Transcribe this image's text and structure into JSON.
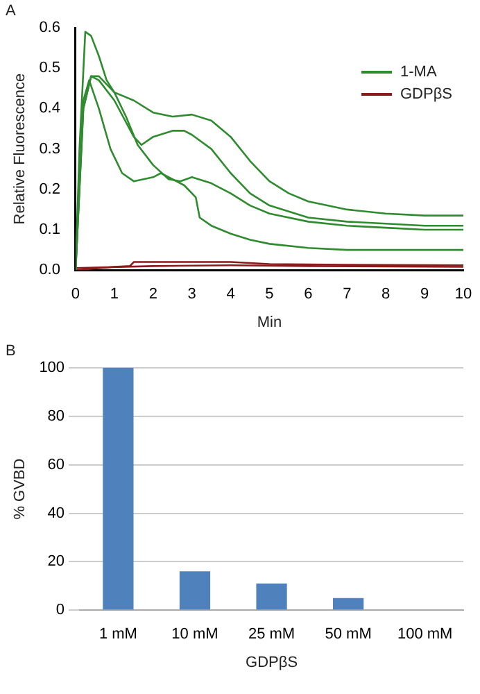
{
  "chart_data": [
    {
      "type": "line",
      "xlabel": "Min",
      "ylabel": "Relative Fluorescence",
      "annotations": [
        "A"
      ],
      "xlim": [
        0,
        10
      ],
      "xticks": [
        0,
        1,
        2,
        3,
        4,
        5,
        6,
        7,
        8,
        9,
        10
      ],
      "ylim": [
        0,
        0.6
      ],
      "yticks": [
        {
          "value": 0,
          "label": "0.0"
        },
        0.1,
        0.2,
        0.3,
        0.4,
        0.5,
        0.6
      ],
      "grid": false,
      "legend": "top right",
      "marker": "none",
      "line_style": "solid",
      "series": [
        {
          "name": "1-MA",
          "color": "#2e8b2e",
          "x": [
            0,
            0.1,
            0.25,
            0.4,
            0.6,
            0.8,
            1,
            1.5,
            2,
            2.5,
            3,
            3.5,
            4,
            4.5,
            5,
            5.5,
            6,
            7,
            8,
            9,
            10
          ],
          "values": [
            0,
            0.3,
            0.59,
            0.58,
            0.53,
            0.47,
            0.44,
            0.42,
            0.39,
            0.38,
            0.385,
            0.37,
            0.33,
            0.27,
            0.22,
            0.19,
            0.17,
            0.15,
            0.14,
            0.135,
            0.135
          ]
        },
        {
          "color": "#2e8b2e",
          "x": [
            0,
            0.2,
            0.4,
            0.6,
            1,
            1.5,
            1.7,
            2,
            2.5,
            2.8,
            3,
            3.5,
            4,
            4.5,
            5,
            6,
            7,
            8,
            9,
            10
          ],
          "values": [
            0,
            0.4,
            0.48,
            0.47,
            0.42,
            0.33,
            0.31,
            0.33,
            0.345,
            0.345,
            0.335,
            0.3,
            0.24,
            0.19,
            0.16,
            0.13,
            0.12,
            0.115,
            0.11,
            0.11
          ]
        },
        {
          "color": "#2e8b2e",
          "x": [
            0,
            0.2,
            0.4,
            0.6,
            1,
            1.3,
            1.6,
            2,
            2.4,
            2.7,
            3,
            3.5,
            4,
            4.5,
            5,
            6,
            7,
            8,
            9,
            10
          ],
          "values": [
            0,
            0.4,
            0.48,
            0.48,
            0.44,
            0.38,
            0.31,
            0.26,
            0.225,
            0.22,
            0.23,
            0.215,
            0.19,
            0.16,
            0.14,
            0.12,
            0.11,
            0.105,
            0.1,
            0.1
          ]
        },
        {
          "color": "#2e8b2e",
          "x": [
            0,
            0.2,
            0.35,
            0.6,
            0.9,
            1.2,
            1.5,
            2,
            2.2,
            2.5,
            2.8,
            3.1,
            3.2,
            3.5,
            4,
            4.5,
            5,
            6,
            7,
            8,
            10
          ],
          "values": [
            0,
            0.42,
            0.47,
            0.4,
            0.3,
            0.24,
            0.22,
            0.23,
            0.24,
            0.225,
            0.21,
            0.18,
            0.13,
            0.11,
            0.09,
            0.075,
            0.065,
            0.055,
            0.05,
            0.05,
            0.05
          ]
        },
        {
          "name": "GDPβS",
          "color": "#8b1a1a",
          "x": [
            0,
            1,
            1.4,
            1.5,
            3,
            4,
            5,
            7,
            10
          ],
          "values": [
            0,
            0.008,
            0.01,
            0.02,
            0.02,
            0.02,
            0.015,
            0.013,
            0.012
          ]
        },
        {
          "color": "#8b1a1a",
          "x": [
            0,
            2,
            4,
            6,
            8,
            10
          ],
          "values": [
            0.005,
            0.01,
            0.012,
            0.01,
            0.009,
            0.008
          ]
        }
      ]
    },
    {
      "type": "bar",
      "xlabel": "GDPβS",
      "ylabel": "% GVBD",
      "annotations": [
        "B"
      ],
      "categories": [
        "1 mM",
        "10 mM",
        "25 mM",
        "50 mM",
        "100 mM"
      ],
      "values": [
        100,
        16,
        11,
        5,
        0
      ],
      "color": "#4f81bd",
      "ylim": [
        0,
        100
      ],
      "yticks": [
        0,
        20,
        40,
        60,
        80,
        100
      ],
      "grid": "y",
      "legend": false
    }
  ]
}
